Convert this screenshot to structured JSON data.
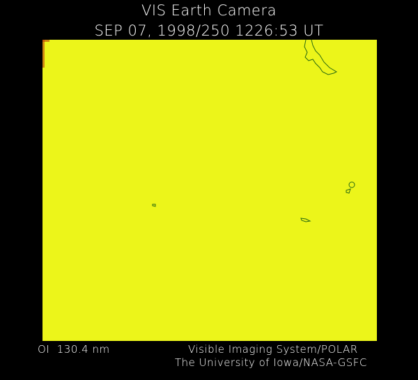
{
  "header": {
    "title": "VIS Earth Camera",
    "datetime": "SEP 07, 1998/250 1226:53 UT"
  },
  "image": {
    "fill_color": "#ecf51a",
    "coastline_color": "#2a6a10",
    "edge_color": "#c0400a"
  },
  "footer": {
    "filter": "OI  130.4 nm",
    "credit_line1": "Visible Imaging System/POLAR",
    "credit_line2": "The University of Iowa/NASA-GSFC"
  }
}
